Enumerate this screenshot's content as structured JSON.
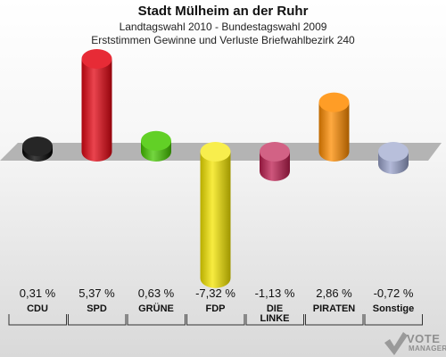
{
  "header": {
    "title": "Stadt Mülheim an der Ruhr",
    "subtitle1": "Landtagswahl 2010 - Bundestagswahl 2009",
    "subtitle2": "Erststimmen Gewinne und Verluste Briefwahlbezirk 240"
  },
  "chart_data": {
    "type": "bar",
    "title": "Stadt Mülheim an der Ruhr",
    "subtitle": "Landtagswahl 2010 - Bundestagswahl 2009 / Erststimmen Gewinne und Verluste Briefwahlbezirk 240",
    "categories": [
      "CDU",
      "SPD",
      "GRÜNE",
      "FDP",
      "DIE LINKE",
      "PIRATEN",
      "Sonstige"
    ],
    "category_lines": [
      [
        "CDU"
      ],
      [
        "SPD"
      ],
      [
        "GRÜNE"
      ],
      [
        "FDP"
      ],
      [
        "DIE",
        "LINKE"
      ],
      [
        "PIRATEN"
      ],
      [
        "Sonstige"
      ]
    ],
    "values": [
      0.31,
      5.37,
      0.63,
      -7.32,
      -1.13,
      2.86,
      -0.72
    ],
    "value_labels": [
      "0,31 %",
      "5,37 %",
      "0,63 %",
      "-7,32 %",
      "-1,13 %",
      "2,86 %",
      "-0,72 %"
    ],
    "colors": [
      "#000000",
      "#e30613",
      "#46c800",
      "#f5e600",
      "#be1e50",
      "#ff8c00",
      "#99a3cc"
    ],
    "legend": "none",
    "grid": false
  },
  "logo": {
    "line1": "VOTE",
    "line2": "MANAGER"
  }
}
